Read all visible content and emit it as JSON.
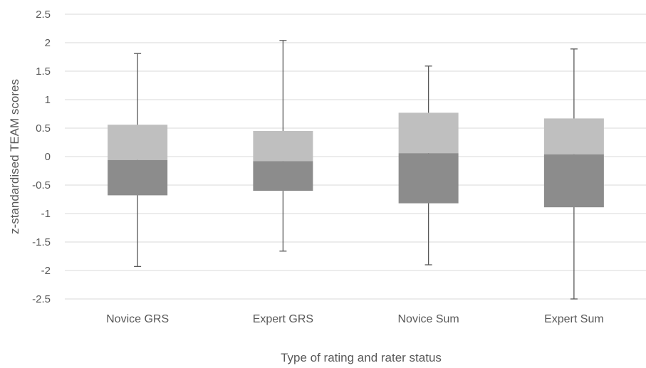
{
  "chart_data": {
    "type": "box",
    "title": "",
    "xlabel": "Type of rating and rater status",
    "ylabel": "z-standardised TEAM scores",
    "ylim": [
      -2.5,
      2.5
    ],
    "ytick_step": 0.5,
    "yticks": [
      "2.5",
      "2",
      "1.5",
      "1",
      "0.5",
      "0",
      "-0.5",
      "-1",
      "-1.5",
      "-2",
      "-2.5"
    ],
    "grid": true,
    "legend": "none",
    "categories": [
      "Novice GRS",
      "Expert GRS",
      "Novice Sum",
      "Expert Sum"
    ],
    "boxes": [
      {
        "min": -1.93,
        "q1": -0.68,
        "median": -0.06,
        "q3": 0.56,
        "max": 1.81
      },
      {
        "min": -1.66,
        "q1": -0.6,
        "median": -0.08,
        "q3": 0.45,
        "max": 2.04
      },
      {
        "min": -1.9,
        "q1": -0.82,
        "median": 0.06,
        "q3": 0.77,
        "max": 1.59
      },
      {
        "min": -2.5,
        "q1": -0.89,
        "median": 0.04,
        "q3": 0.67,
        "max": 1.89
      }
    ],
    "colors": {
      "upper_box": "#bfbfbf",
      "lower_box": "#8c8c8c",
      "whisker": "#595959",
      "grid": "#d9d9d9",
      "text": "#595959"
    }
  }
}
